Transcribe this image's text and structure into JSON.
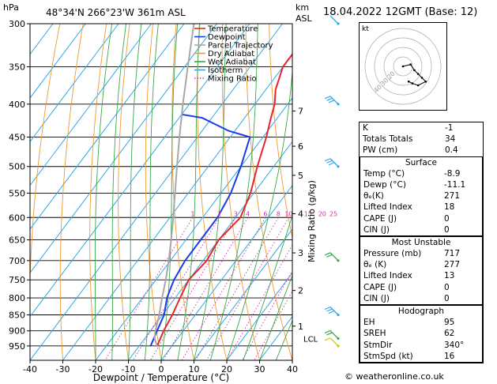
{
  "header": {
    "hpa_label": "hPa",
    "location": "48°34'N  266°23'W  361m  ASL",
    "km_label": "km",
    "asl_label": "ASL",
    "date": "18.04.2022  12GMT  (Base: 12)"
  },
  "axes": {
    "xlabel": "Dewpoint / Temperature (°C)",
    "ylabel_right": "Mixing Ratio (g/kg)",
    "x_ticks": [
      -40,
      -30,
      -20,
      -10,
      0,
      10,
      20,
      30,
      40
    ],
    "x_tick_labels": [
      "-40",
      "-30",
      "-20",
      "-10",
      "0",
      "10",
      "20",
      "30",
      "40"
    ],
    "p_ticks": [
      300,
      350,
      400,
      450,
      500,
      550,
      600,
      650,
      700,
      750,
      800,
      850,
      900,
      950
    ],
    "p_tick_labels": [
      "300",
      "350",
      "400",
      "450",
      "500",
      "550",
      "600",
      "650",
      "700",
      "750",
      "800",
      "850",
      "900",
      "950"
    ],
    "km_ticks": [
      {
        "p": 410,
        "label": "7"
      },
      {
        "p": 465,
        "label": "6"
      },
      {
        "p": 516,
        "label": "5"
      },
      {
        "p": 592,
        "label": "4"
      },
      {
        "p": 681,
        "label": "3"
      },
      {
        "p": 779,
        "label": "2"
      },
      {
        "p": 885,
        "label": "1"
      }
    ],
    "lcl": {
      "p": 925,
      "label": "LCL"
    },
    "mixing_ratio_labels": [
      {
        "w": 1,
        "label": "1"
      },
      {
        "w": 2,
        "label": "2"
      },
      {
        "w": 3,
        "label": "3"
      },
      {
        "w": 4,
        "label": "4"
      },
      {
        "w": 6,
        "label": "6"
      },
      {
        "w": 8,
        "label": "8"
      },
      {
        "w": 10,
        "label": "10"
      },
      {
        "w": 15,
        "label": "15"
      },
      {
        "w": 20,
        "label": "20"
      },
      {
        "w": 25,
        "label": "25"
      }
    ]
  },
  "legend": [
    {
      "label": "Temperature",
      "color": "#e8262a",
      "style": "solid"
    },
    {
      "label": "Dewpoint",
      "color": "#1a3ce8",
      "style": "solid"
    },
    {
      "label": "Parcel Trajectory",
      "color": "#a8a8a8",
      "style": "solid"
    },
    {
      "label": "Dry Adiabat",
      "color": "#f09a30",
      "style": "solid"
    },
    {
      "label": "Wet Adiabat",
      "color": "#3aa84a",
      "style": "solid"
    },
    {
      "label": "Isotherm",
      "color": "#30a8e8",
      "style": "solid"
    },
    {
      "label": "Mixing Ratio",
      "color": "#d030a8",
      "style": "dotted"
    }
  ],
  "chart_data": {
    "type": "line",
    "title": "",
    "xlim": [
      -40,
      40
    ],
    "plim": [
      300,
      1000
    ],
    "series": [
      {
        "name": "Temperature",
        "color": "#e8262a",
        "points": [
          [
            950,
            -4.5
          ],
          [
            900,
            -6.0
          ],
          [
            850,
            -7.0
          ],
          [
            800,
            -8.5
          ],
          [
            750,
            -10.0
          ],
          [
            700,
            -8.9
          ],
          [
            650,
            -10.0
          ],
          [
            600,
            -8.5
          ],
          [
            550,
            -11.0
          ],
          [
            500,
            -15.0
          ],
          [
            450,
            -19.0
          ],
          [
            420,
            -22.0
          ],
          [
            400,
            -24.0
          ],
          [
            380,
            -27.0
          ],
          [
            350,
            -30.0
          ],
          [
            320,
            -30.0
          ],
          [
            300,
            -30.0
          ]
        ]
      },
      {
        "name": "Dewpoint",
        "color": "#1a3ce8",
        "points": [
          [
            950,
            -6.5
          ],
          [
            900,
            -8.0
          ],
          [
            850,
            -9.5
          ],
          [
            800,
            -12.5
          ],
          [
            750,
            -14.5
          ],
          [
            700,
            -15.5
          ],
          [
            650,
            -15.5
          ],
          [
            600,
            -15.5
          ],
          [
            550,
            -17.0
          ],
          [
            500,
            -20.0
          ],
          [
            450,
            -24.0
          ],
          [
            440,
            -32.0
          ],
          [
            420,
            -43.0
          ],
          [
            415,
            -50.0
          ]
        ]
      },
      {
        "name": "Parcel Trajectory",
        "color": "#a8a8a8",
        "points": [
          [
            950,
            -4.5
          ],
          [
            925,
            -7.0
          ],
          [
            900,
            -8.5
          ],
          [
            850,
            -11.0
          ],
          [
            800,
            -14.0
          ],
          [
            750,
            -17.0
          ],
          [
            700,
            -20.5
          ],
          [
            650,
            -24.5
          ],
          [
            600,
            -29.0
          ],
          [
            550,
            -34.0
          ],
          [
            500,
            -39.5
          ],
          [
            450,
            -45.5
          ],
          [
            400,
            -52.0
          ],
          [
            350,
            -59.0
          ],
          [
            300,
            -67.0
          ]
        ]
      }
    ],
    "wind_barbs": [
      {
        "p": 300,
        "speed": "calm",
        "color": "#30a8e8"
      },
      {
        "p": 400,
        "speed": "strong",
        "color": "#30a8e8"
      },
      {
        "p": 500,
        "speed": "strong",
        "color": "#30a8e8"
      },
      {
        "p": 700,
        "speed": "moderate",
        "color": "#3aa84a"
      },
      {
        "p": 850,
        "speed": "strong",
        "color": "#30a8e8"
      },
      {
        "p": 925,
        "speed": "moderate",
        "color": "#3aa84a"
      },
      {
        "p": 950,
        "speed": "weak",
        "color": "#c8c820"
      }
    ]
  },
  "hodograph": {
    "label": "kt",
    "ring_labels": [
      "20",
      "30",
      "40"
    ],
    "points": [
      [
        0.0,
        0.0
      ],
      [
        4.0,
        1.0
      ],
      [
        6.0,
        -2.0
      ],
      [
        8.0,
        -4.0
      ],
      [
        10.0,
        -6.0
      ],
      [
        12.0,
        -8.0
      ],
      [
        8.0,
        -10.0
      ],
      [
        5.0,
        -9.0
      ],
      [
        3.0,
        -8.0
      ]
    ]
  },
  "indices": [
    {
      "label": "K",
      "value": "-1"
    },
    {
      "label": "Totals Totals",
      "value": "34"
    },
    {
      "label": "PW (cm)",
      "value": "0.4"
    }
  ],
  "surface": {
    "title": "Surface",
    "rows": [
      {
        "label": "Temp (°C)",
        "value": "-8.9"
      },
      {
        "label": "Dewp (°C)",
        "value": "-11.1"
      },
      {
        "label": "θₑ(K)",
        "value": "271"
      },
      {
        "label": "Lifted Index",
        "value": "18"
      },
      {
        "label": "CAPE (J)",
        "value": "0"
      },
      {
        "label": "CIN (J)",
        "value": "0"
      }
    ]
  },
  "most_unstable": {
    "title": "Most Unstable",
    "rows": [
      {
        "label": "Pressure (mb)",
        "value": "717"
      },
      {
        "label": "θₑ (K)",
        "value": "277"
      },
      {
        "label": "Lifted Index",
        "value": "13"
      },
      {
        "label": "CAPE (J)",
        "value": "0"
      },
      {
        "label": "CIN (J)",
        "value": "0"
      }
    ]
  },
  "hodograph_box": {
    "title": "Hodograph",
    "rows": [
      {
        "label": "EH",
        "value": "95"
      },
      {
        "label": "SREH",
        "value": "62"
      },
      {
        "label": "StmDir",
        "value": "340°"
      },
      {
        "label": "StmSpd (kt)",
        "value": "16"
      }
    ]
  },
  "footer": "© weatheronline.co.uk"
}
